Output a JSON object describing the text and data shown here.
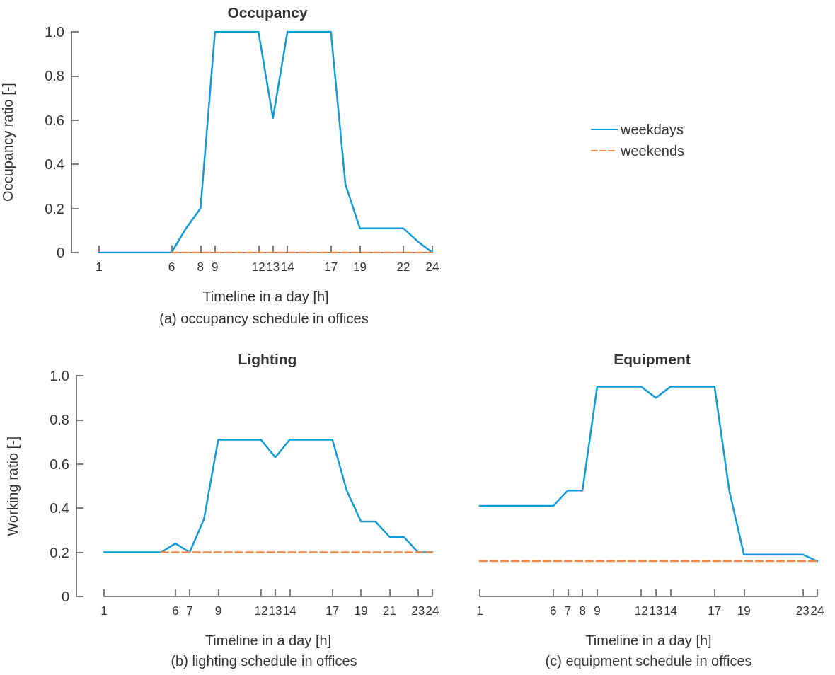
{
  "chart_data": [
    {
      "type": "line",
      "title": "Occupancy",
      "xlabel": "Timeline in a day [h]",
      "ylabel": "Occupancy ratio [-]",
      "annotations": [
        "(a) occupancy schedule in offices"
      ],
      "x": [
        1,
        2,
        3,
        4,
        5,
        6,
        7,
        8,
        9,
        10,
        11,
        12,
        13,
        14,
        15,
        16,
        17,
        18,
        19,
        20,
        21,
        22,
        23,
        24
      ],
      "series": [
        {
          "name": "weekdays",
          "color": "#0e9bd8",
          "line_style": "solid",
          "values": [
            0,
            0,
            0,
            0,
            0,
            0,
            0.11,
            0.2,
            1,
            1,
            1,
            1,
            0.61,
            1,
            1,
            1,
            1,
            0.31,
            0.11,
            0.11,
            0.11,
            0.11,
            0.05,
            0
          ]
        },
        {
          "name": "weekends",
          "color": "#f08a4b",
          "line_style": "dashed",
          "x": [
            6,
            24
          ],
          "values": [
            0,
            0
          ]
        }
      ],
      "xlim": [
        1,
        24
      ],
      "xticks": [
        1,
        6,
        8,
        9,
        12,
        13,
        14,
        17,
        19,
        22,
        24
      ],
      "ylim": [
        0,
        1
      ],
      "yticks": [
        0,
        0.2,
        0.4,
        0.6,
        0.8,
        {
          "value": 1,
          "label": "1.0"
        }
      ],
      "marker": "none",
      "grid": false,
      "legend": "right"
    },
    {
      "type": "line",
      "title": "Lighting",
      "xlabel": "Timeline in a day [h]",
      "ylabel": "Working ratio [-]",
      "annotations": [
        "(b) lighting schedule in offices"
      ],
      "x": [
        1,
        2,
        3,
        4,
        5,
        6,
        7,
        8,
        9,
        10,
        11,
        12,
        13,
        14,
        15,
        16,
        17,
        18,
        19,
        20,
        21,
        22,
        23,
        24
      ],
      "series": [
        {
          "color": "#0e9bd8",
          "line_style": "solid",
          "values": [
            0.2,
            0.2,
            0.2,
            0.2,
            0.2,
            0.24,
            0.2,
            0.35,
            0.71,
            0.71,
            0.71,
            0.71,
            0.63,
            0.71,
            0.71,
            0.71,
            0.71,
            0.48,
            0.34,
            0.34,
            0.27,
            0.27,
            0.2,
            0.2
          ]
        },
        {
          "color": "#f08a4b",
          "line_style": "dashed",
          "x": [
            5,
            24
          ],
          "values": [
            0.2,
            0.2
          ]
        }
      ],
      "xlim": [
        1,
        24
      ],
      "xticks": [
        1,
        6,
        7,
        9,
        12,
        13,
        14,
        17,
        19,
        21,
        23,
        24
      ],
      "ylim": [
        0,
        1
      ],
      "yticks": [
        0,
        0.2,
        0.4,
        0.6,
        0.8,
        {
          "value": 1,
          "label": "1.0"
        }
      ],
      "marker": "none",
      "grid": false,
      "legend": false
    },
    {
      "type": "line",
      "title": "Equipment",
      "xlabel": "Timeline in a day [h]",
      "annotations": [
        "(c) equipment schedule in offices"
      ],
      "x": [
        1,
        2,
        3,
        4,
        5,
        6,
        7,
        8,
        9,
        10,
        11,
        12,
        13,
        14,
        15,
        16,
        17,
        18,
        19,
        20,
        21,
        22,
        23,
        24
      ],
      "series": [
        {
          "color": "#0e9bd8",
          "line_style": "solid",
          "values": [
            0.41,
            0.41,
            0.41,
            0.41,
            0.41,
            0.41,
            0.48,
            0.48,
            0.95,
            0.95,
            0.95,
            0.95,
            0.9,
            0.95,
            0.95,
            0.95,
            0.95,
            0.48,
            0.19,
            0.19,
            0.19,
            0.19,
            0.19,
            0.16
          ]
        },
        {
          "color": "#f08a4b",
          "line_style": "dashed",
          "x": [
            1,
            24
          ],
          "values": [
            0.16,
            0.16
          ]
        }
      ],
      "xlim": [
        1,
        24
      ],
      "xticks": [
        1,
        6,
        7,
        8,
        9,
        12,
        13,
        14,
        17,
        19,
        23,
        24
      ],
      "ylim": [
        0,
        1
      ],
      "marker": "none",
      "grid": false,
      "legend": false,
      "tick_labels": "x"
    }
  ]
}
